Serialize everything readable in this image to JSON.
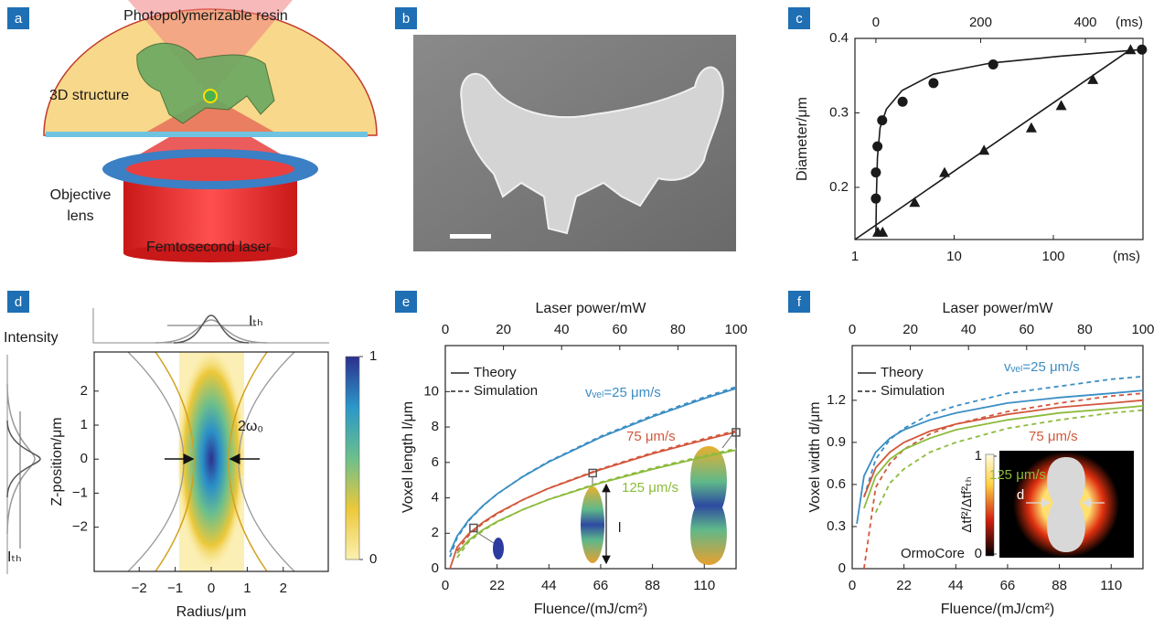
{
  "panel_labels": [
    "a",
    "b",
    "c",
    "d",
    "e",
    "f"
  ],
  "illustration": {
    "resin": "Photopolymerizable resin",
    "structure": "3D structure",
    "lens": [
      "Objective",
      "lens"
    ],
    "laser": "Femtosecond laser"
  },
  "chart_data": [
    {
      "type": "scatter",
      "ylabel": "Diameter/μm",
      "xscale": "log",
      "xlim": [
        1,
        800
      ],
      "xticks": [
        1,
        10,
        100
      ],
      "x_unit": "(ms)",
      "x2lim": [
        -40,
        510
      ],
      "x2ticks": [
        0,
        200,
        400
      ],
      "x2_unit": "(ms)",
      "ylim": [
        0.13,
        0.4
      ],
      "yticks": [
        0.2,
        0.3,
        0.4
      ],
      "series": [
        {
          "marker": "circle",
          "color": "#1a1a1a",
          "xaxis": "x2",
          "x": [
            0,
            0,
            3,
            12,
            51,
            110,
            224,
            508
          ],
          "values": [
            0.185,
            0.22,
            0.255,
            0.29,
            0.315,
            0.34,
            0.365,
            0.385
          ]
        },
        {
          "marker": "triangle",
          "color": "#1a1a1a",
          "x": [
            1.7,
            1.9,
            4,
            8,
            20,
            60,
            120,
            250,
            600
          ],
          "values": [
            0.14,
            0.14,
            0.18,
            0.22,
            0.25,
            0.28,
            0.31,
            0.345,
            0.385
          ]
        },
        {
          "style": "line",
          "color": "#1a1a1a",
          "xaxis": "x2",
          "x": [
            0,
            1,
            3,
            8,
            20,
            50,
            110,
            220,
            350,
            508
          ],
          "values": [
            0.135,
            0.19,
            0.24,
            0.28,
            0.305,
            0.33,
            0.352,
            0.367,
            0.376,
            0.385
          ]
        },
        {
          "style": "line",
          "color": "#1a1a1a",
          "x": [
            1,
            600
          ],
          "values": [
            0.13,
            0.385
          ]
        }
      ]
    },
    {
      "type": "heatmap",
      "xlabel": "Radius/μm",
      "ylabel": "Z-position/μm",
      "xlim": [
        -3.25,
        3.25
      ],
      "xticks": [
        {
          "value": -2,
          "label": "−2"
        },
        {
          "value": -1,
          "label": "−1"
        },
        0,
        1,
        2
      ],
      "ylim": [
        -3.3,
        3.15
      ],
      "yticks": [
        {
          "value": -2,
          "label": "−2"
        },
        {
          "value": -1,
          "label": "−1"
        },
        0,
        1,
        2
      ],
      "colorbar": {
        "lim": [
          0,
          1
        ],
        "ticks": [
          0,
          1
        ],
        "colors": [
          "#fbf0b0",
          "#ecc83a",
          "#6cbf8c",
          "#2a98c8",
          "#2d2f8e"
        ]
      },
      "profile_label": "Intensity",
      "threshold_label": "Iₜₕ",
      "waist_label": "2ω₀"
    },
    {
      "type": "line",
      "xlabel": "Fluence/(mJ/cm²)",
      "x2label": "Laser power/mW",
      "ylabel": "Voxel length l/μm",
      "xlim": [
        0,
        123.5
      ],
      "xticks": [
        0,
        22,
        44,
        66,
        88,
        110
      ],
      "x2lim": [
        0,
        100
      ],
      "x2ticks": [
        0,
        20,
        40,
        60,
        80,
        100
      ],
      "ylim": [
        0,
        12.6
      ],
      "yticks": [
        0,
        2,
        4,
        6,
        8,
        10
      ],
      "legend": [
        {
          "name": "Theory",
          "dash": false
        },
        {
          "name": "Simulation",
          "dash": true
        }
      ],
      "x": [
        2,
        5,
        10,
        16,
        22,
        33,
        44,
        66,
        88,
        110,
        123.5
      ],
      "series": [
        {
          "color": "#3b8ec4",
          "dash": false,
          "values": [
            0.92,
            1.84,
            2.76,
            3.56,
            4.22,
            5.2,
            6.03,
            7.42,
            8.58,
            9.61,
            10.18
          ]
        },
        {
          "color": "#3b8ec4",
          "dash": true,
          "values": [
            0.66,
            1.74,
            2.71,
            3.54,
            4.21,
            5.22,
            6.06,
            7.47,
            8.65,
            9.69,
            10.27
          ]
        },
        {
          "color": "#d2583c",
          "dash": false,
          "values": [
            0,
            1.21,
            1.98,
            2.62,
            3.13,
            3.9,
            4.54,
            5.6,
            6.49,
            7.27,
            7.72
          ]
        },
        {
          "color": "#d2583c",
          "dash": true,
          "values": [
            null,
            1.0,
            1.88,
            2.56,
            3.09,
            3.89,
            4.55,
            5.64,
            6.55,
            7.34,
            7.79
          ]
        },
        {
          "color": "#8cbb3c",
          "dash": false,
          "values": [
            null,
            0.86,
            1.61,
            2.2,
            2.66,
            3.34,
            3.91,
            4.84,
            5.62,
            6.31,
            6.7
          ]
        },
        {
          "color": "#8cbb3c",
          "dash": true,
          "values": [
            null,
            0.62,
            1.52,
            2.15,
            2.63,
            3.34,
            3.92,
            4.88,
            5.68,
            6.38,
            6.78
          ]
        }
      ],
      "markers": {
        "x": [
          12,
          62.6,
          123.5
        ],
        "values": [
          2.3,
          5.4,
          7.7
        ]
      },
      "annotations": [
        {
          "text": "vᵥₑₗ=25 μm/s",
          "color": "#3b8ec4"
        },
        {
          "text": "75 μm/s",
          "color": "#d2583c"
        },
        {
          "text": "125 μm/s",
          "color": "#8cbb3c"
        },
        {
          "text": "l",
          "color": "#1a1a1a"
        }
      ]
    },
    {
      "type": "line",
      "xlabel": "Fluence/(mJ/cm²)",
      "x2label": "Laser power/mW",
      "ylabel": "Voxel width d/μm",
      "xlim": [
        0,
        123.5
      ],
      "xticks": [
        0,
        22,
        44,
        66,
        88,
        110
      ],
      "x2lim": [
        0,
        100
      ],
      "x2ticks": [
        0,
        20,
        40,
        60,
        80,
        100
      ],
      "ylim": [
        0,
        1.59
      ],
      "yticks": [
        0,
        0.3,
        0.6,
        0.9,
        1.2
      ],
      "legend": [
        {
          "name": "Theory",
          "dash": false
        },
        {
          "name": "Simulation",
          "dash": true
        }
      ],
      "x": [
        2,
        5,
        10,
        16,
        22,
        33,
        44,
        66,
        88,
        110,
        123.5
      ],
      "series": [
        {
          "color": "#3b8ec4",
          "dash": false,
          "values": [
            0.32,
            0.66,
            0.83,
            0.93,
            0.99,
            1.06,
            1.11,
            1.18,
            1.22,
            1.25,
            1.27
          ]
        },
        {
          "color": "#3b8ec4",
          "dash": true,
          "values": [
            null,
            0.51,
            0.78,
            0.92,
            1.0,
            1.1,
            1.16,
            1.25,
            1.3,
            1.35,
            1.37
          ]
        },
        {
          "color": "#d2583c",
          "dash": false,
          "values": [
            null,
            0.51,
            0.72,
            0.83,
            0.9,
            0.98,
            1.03,
            1.1,
            1.15,
            1.18,
            1.2
          ]
        },
        {
          "color": "#d2583c",
          "dash": true,
          "values": [
            null,
            0,
            0.58,
            0.75,
            0.85,
            0.96,
            1.03,
            1.12,
            1.18,
            1.23,
            1.25
          ]
        },
        {
          "color": "#8cbb3c",
          "dash": false,
          "values": [
            null,
            0.43,
            0.66,
            0.78,
            0.85,
            0.93,
            0.99,
            1.06,
            1.11,
            1.14,
            1.16
          ]
        },
        {
          "color": "#8cbb3c",
          "dash": true,
          "values": [
            null,
            null,
            0.4,
            0.61,
            0.71,
            0.83,
            0.9,
            1.0,
            1.06,
            1.11,
            1.13
          ]
        }
      ],
      "inset_colorbar": {
        "lim": [
          0,
          1
        ],
        "ticks": [
          0,
          1
        ],
        "label": "Δtf²/Δtf²ₜₕ"
      },
      "annotations": [
        {
          "text": "vᵥₑₗ=25 μm/s",
          "color": "#3b8ec4"
        },
        {
          "text": "75 μm/s",
          "color": "#d2583c"
        },
        {
          "text": "125 μm/s",
          "color": "#8cbb3c"
        },
        {
          "text": "OrmoCore",
          "color": "#1a1a1a"
        },
        {
          "text": "d",
          "color": "#ffffff"
        }
      ]
    }
  ]
}
